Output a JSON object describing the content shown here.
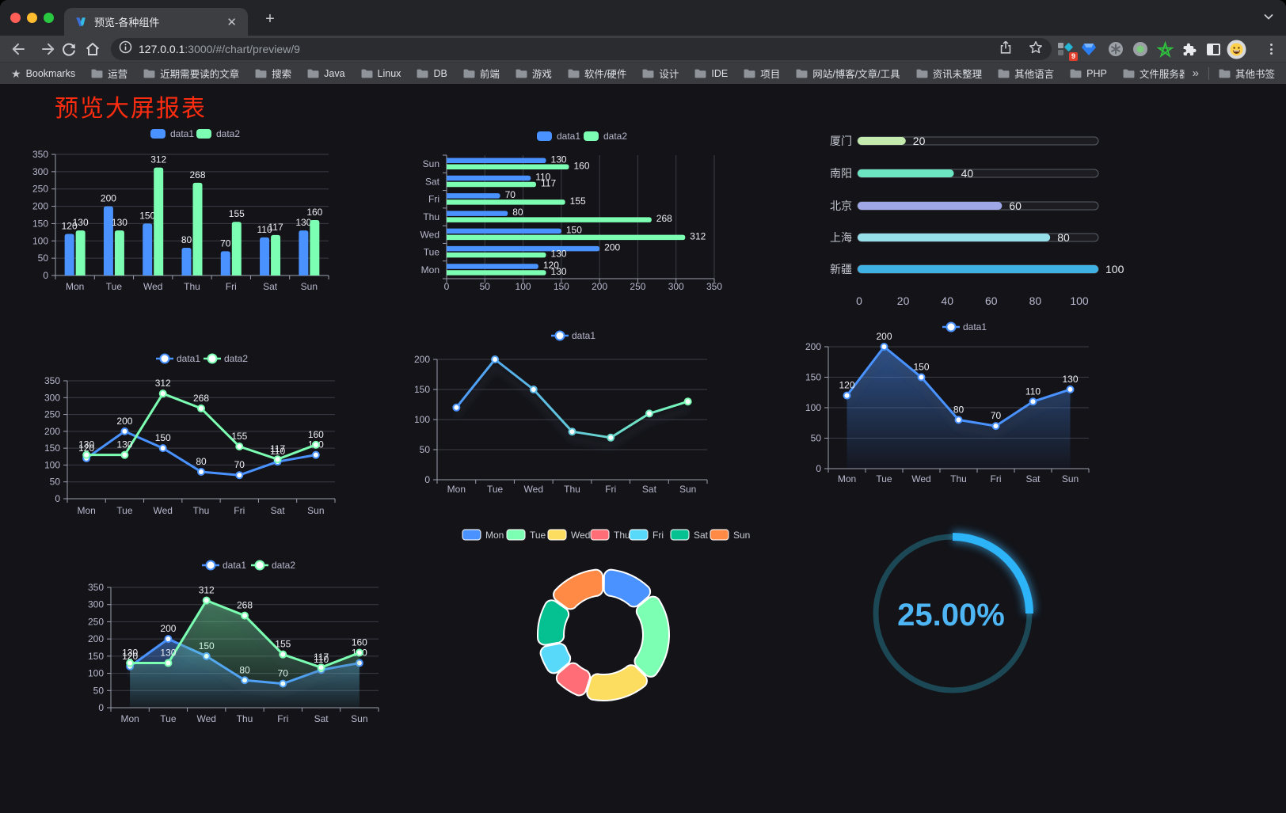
{
  "browser": {
    "window_controls": [
      "close",
      "minimize",
      "zoom"
    ],
    "tab": {
      "title": "预览-各种组件"
    },
    "url": {
      "host": "127.0.0.1",
      "rest": ":3000/#/chart/preview/9"
    },
    "extensions": {
      "badge_count": "9"
    },
    "bookmarks_bar": {
      "root_label": "Bookmarks",
      "folders": [
        "运营",
        "近期需要读的文章",
        "搜索",
        "Java",
        "Linux",
        "DB",
        "前端",
        "游戏",
        "软件/硬件",
        "设计",
        "IDE",
        "项目",
        "网站/博客/文章/工具",
        "资讯未整理",
        "其他语言",
        "PHP",
        "文件服务器"
      ],
      "other_bookmarks_label": "其他书签"
    }
  },
  "page": {
    "title": "预览大屏报表"
  },
  "chart_data": [
    {
      "id": "grouped-bar",
      "type": "bar",
      "categories": [
        "Mon",
        "Tue",
        "Wed",
        "Thu",
        "Fri",
        "Sat",
        "Sun"
      ],
      "series": [
        {
          "name": "data1",
          "color": "#4992ff",
          "values": [
            120,
            200,
            150,
            80,
            70,
            110,
            130
          ]
        },
        {
          "name": "data2",
          "color": "#7cffb2",
          "values": [
            130,
            130,
            312,
            268,
            155,
            117,
            160
          ]
        }
      ],
      "ylim": [
        0,
        350
      ],
      "ystep": 50,
      "show_labels": true,
      "legend_position": "top",
      "grid": true
    },
    {
      "id": "grouped-hbar",
      "type": "bar-horizontal",
      "categories": [
        "Mon",
        "Tue",
        "Wed",
        "Thu",
        "Fri",
        "Sat",
        "Sun"
      ],
      "series": [
        {
          "name": "data1",
          "color": "#4992ff",
          "values": [
            120,
            200,
            150,
            80,
            70,
            110,
            130
          ]
        },
        {
          "name": "data2",
          "color": "#7cffb2",
          "values": [
            130,
            130,
            312,
            268,
            155,
            117,
            160
          ]
        }
      ],
      "xlim": [
        0,
        350
      ],
      "xstep": 50,
      "show_labels": true,
      "legend_position": "top",
      "grid": true
    },
    {
      "id": "city-progress",
      "type": "progress-bar",
      "rows": [
        {
          "label": "厦门",
          "value": 20,
          "color": "#c4ebad"
        },
        {
          "label": "南阳",
          "value": 40,
          "color": "#6be6c1"
        },
        {
          "label": "北京",
          "value": 60,
          "color": "#a0a7e6"
        },
        {
          "label": "上海",
          "value": 80,
          "color": "#96dee8"
        },
        {
          "label": "新疆",
          "value": 100,
          "color": "#3fb1e3"
        }
      ],
      "xlim": [
        0,
        100
      ],
      "xticks": [
        0,
        20,
        40,
        60,
        80,
        100
      ]
    },
    {
      "id": "two-line",
      "type": "line",
      "categories": [
        "Mon",
        "Tue",
        "Wed",
        "Thu",
        "Fri",
        "Sat",
        "Sun"
      ],
      "series": [
        {
          "name": "data1",
          "color": "#4992ff",
          "values": [
            120,
            200,
            150,
            80,
            70,
            110,
            130
          ]
        },
        {
          "name": "data2",
          "color": "#7cffb2",
          "values": [
            130,
            130,
            312,
            268,
            155,
            117,
            160
          ]
        }
      ],
      "ylim": [
        0,
        350
      ],
      "ystep": 50,
      "show_labels": true,
      "area": false,
      "shadow": false,
      "legend_position": "top"
    },
    {
      "id": "gradient-line",
      "type": "line",
      "categories": [
        "Mon",
        "Tue",
        "Wed",
        "Thu",
        "Fri",
        "Sat",
        "Sun"
      ],
      "series": [
        {
          "name": "data1",
          "color": "#4992ff",
          "color_end": "#7cffb2",
          "gradient": true,
          "values": [
            120,
            200,
            150,
            80,
            70,
            110,
            130
          ]
        }
      ],
      "ylim": [
        0,
        200
      ],
      "ystep": 50,
      "show_labels": false,
      "area": false,
      "shadow": true,
      "legend_position": "top"
    },
    {
      "id": "area-line",
      "type": "area",
      "categories": [
        "Mon",
        "Tue",
        "Wed",
        "Thu",
        "Fri",
        "Sat",
        "Sun"
      ],
      "series": [
        {
          "name": "data1",
          "color": "#4992ff",
          "values": [
            120,
            200,
            150,
            80,
            70,
            110,
            130
          ]
        }
      ],
      "ylim": [
        0,
        200
      ],
      "ystep": 50,
      "show_labels": true,
      "area": true,
      "shadow": true,
      "legend_position": "top"
    },
    {
      "id": "two-area",
      "type": "area",
      "categories": [
        "Mon",
        "Tue",
        "Wed",
        "Thu",
        "Fri",
        "Sat",
        "Sun"
      ],
      "series": [
        {
          "name": "data1",
          "color": "#4992ff",
          "values": [
            120,
            200,
            150,
            80,
            70,
            110,
            130
          ]
        },
        {
          "name": "data2",
          "color": "#7cffb2",
          "values": [
            130,
            130,
            312,
            268,
            155,
            117,
            160
          ]
        }
      ],
      "ylim": [
        0,
        350
      ],
      "ystep": 50,
      "show_labels": true,
      "area": true,
      "shadow": true,
      "legend_position": "top"
    },
    {
      "id": "weekday-donut",
      "type": "pie",
      "items": [
        {
          "name": "Mon",
          "value": 120,
          "color": "#4992ff"
        },
        {
          "name": "Tue",
          "value": 200,
          "color": "#7cffb2"
        },
        {
          "name": "Wed",
          "value": 150,
          "color": "#fddd60"
        },
        {
          "name": "Thu",
          "value": 80,
          "color": "#ff6e76"
        },
        {
          "name": "Fri",
          "value": 70,
          "color": "#58d9f9"
        },
        {
          "name": "Sat",
          "value": 110,
          "color": "#05c091"
        },
        {
          "name": "Sun",
          "value": 130,
          "color": "#ff8a45"
        }
      ],
      "donut": true,
      "border_color": "#ffffff",
      "legend_position": "top"
    },
    {
      "id": "percent-gauge",
      "type": "gauge",
      "value": 25,
      "display": "25.00%",
      "color": "#2db3f7",
      "track_color": "#1c4856",
      "text_color": "#4fb6f6"
    }
  ]
}
